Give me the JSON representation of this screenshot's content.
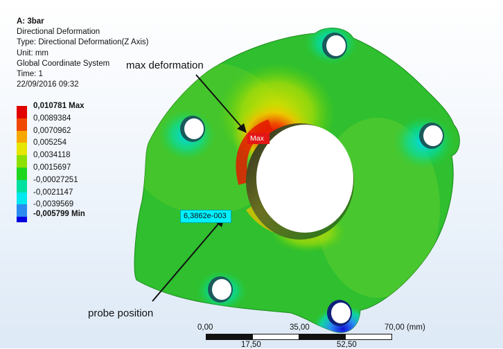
{
  "info": {
    "title": "A: 3bar",
    "lines": [
      "Directional Deformation",
      "Type: Directional Deformation(Z Axis)",
      "Unit: mm",
      "Global Coordinate System",
      "Time: 1",
      "22/09/2016 09:32"
    ]
  },
  "legend": {
    "entries": [
      {
        "label": "0,010781 Max",
        "color": "#e10000"
      },
      {
        "label": "0,0089384",
        "color": "#f04800"
      },
      {
        "label": "0,0070962",
        "color": "#f7a800"
      },
      {
        "label": "0,005254",
        "color": "#e6e600"
      },
      {
        "label": "0,0034118",
        "color": "#8ee000"
      },
      {
        "label": "0,0015697",
        "color": "#1ed61e"
      },
      {
        "label": "-0,00027251",
        "color": "#00e0a0"
      },
      {
        "label": "-0,0021147",
        "color": "#00e8f0"
      },
      {
        "label": "-0,0039569",
        "color": "#2a8cf0"
      }
    ],
    "min_label": "-0,005799 Min",
    "min_color": "#0000e0"
  },
  "annotations": {
    "max_deformation": "max deformation",
    "probe_position": "probe position",
    "probe_value": "6,3862e-003",
    "max_tag": "Max"
  },
  "scale_bar": {
    "top_labels": [
      "0,00",
      "35,00",
      "70,00 (mm)"
    ],
    "bottom_labels": [
      "17,50",
      "52,50"
    ]
  }
}
